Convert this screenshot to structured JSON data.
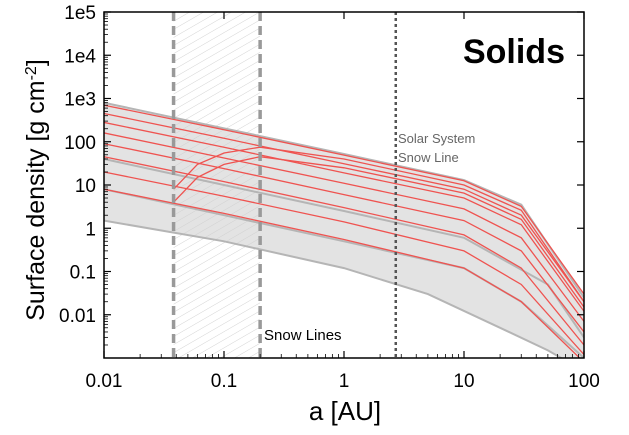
{
  "chart_data": {
    "type": "line",
    "title": "Solids",
    "xlabel": "a [AU]",
    "ylabel_main": "Surface density [g cm",
    "ylabel_sup": "-2",
    "ylabel_close": "]",
    "x_scale": "log",
    "y_scale": "log",
    "xlim": [
      0.01,
      100
    ],
    "ylim": [
      0.001,
      100000
    ],
    "x_ticks": [
      {
        "value": 0.01,
        "label": "0.01"
      },
      {
        "value": 0.1,
        "label": "0.1"
      },
      {
        "value": 1,
        "label": "1"
      },
      {
        "value": 10,
        "label": "10"
      },
      {
        "value": 100,
        "label": "100"
      }
    ],
    "y_ticks": [
      {
        "value": 0.01,
        "label": "0.01"
      },
      {
        "value": 0.1,
        "label": "0.1"
      },
      {
        "value": 1,
        "label": "1"
      },
      {
        "value": 10,
        "label": "10"
      },
      {
        "value": 100,
        "label": "100"
      },
      {
        "value": 1000,
        "label": "1e3"
      },
      {
        "value": 10000,
        "label": "1e4"
      },
      {
        "value": 100000,
        "label": "1e5"
      }
    ],
    "snow_line_band": {
      "x_min": 0.038,
      "x_max": 0.2
    },
    "solar_system_snow_line": 2.7,
    "annotations": {
      "snow_lines": "Snow Lines",
      "solar_line1": "Solar System",
      "solar_line2": "Snow Line"
    },
    "envelope": {
      "upper": [
        [
          0.01,
          800
        ],
        [
          0.1,
          205
        ],
        [
          1,
          52
        ],
        [
          10,
          13
        ],
        [
          30,
          3.5
        ],
        [
          100,
          0.025
        ]
      ],
      "lower": [
        [
          0.01,
          1.5
        ],
        [
          0.1,
          0.5
        ],
        [
          1,
          0.12
        ],
        [
          5,
          0.03
        ],
        [
          20,
          0.005
        ],
        [
          50,
          0.0015
        ],
        [
          100,
          0.0005
        ]
      ]
    },
    "series": [
      {
        "group": "gray",
        "values": [
          [
            0.01,
            800
          ],
          [
            0.1,
            205
          ],
          [
            1,
            52
          ],
          [
            10,
            13
          ],
          [
            30,
            3.5
          ],
          [
            100,
            0.025
          ]
        ]
      },
      {
        "group": "gray",
        "values": [
          [
            0.01,
            40
          ],
          [
            0.1,
            10
          ],
          [
            1,
            2.5
          ],
          [
            10,
            0.6
          ],
          [
            50,
            0.05
          ],
          [
            100,
            0.003
          ]
        ]
      },
      {
        "group": "gray",
        "values": [
          [
            0.01,
            8
          ],
          [
            0.1,
            2
          ],
          [
            1,
            0.5
          ],
          [
            10,
            0.12
          ],
          [
            30,
            0.02
          ],
          [
            100,
            0.001
          ]
        ]
      },
      {
        "group": "gray",
        "values": [
          [
            0.01,
            1.5
          ],
          [
            0.1,
            0.5
          ],
          [
            1,
            0.12
          ],
          [
            5,
            0.03
          ],
          [
            20,
            0.005
          ],
          [
            50,
            0.0015
          ],
          [
            100,
            0.0005
          ]
        ]
      },
      {
        "group": "red",
        "values": [
          [
            0.01,
            700
          ],
          [
            0.1,
            190
          ],
          [
            1,
            49
          ],
          [
            10,
            12.5
          ],
          [
            30,
            3.2
          ],
          [
            100,
            0.03
          ]
        ]
      },
      {
        "group": "red",
        "values": [
          [
            0.01,
            450
          ],
          [
            0.1,
            120
          ],
          [
            1,
            31
          ],
          [
            10,
            8
          ],
          [
            30,
            2
          ],
          [
            100,
            0.02
          ]
        ]
      },
      {
        "group": "red",
        "values": [
          [
            0.01,
            280
          ],
          [
            0.1,
            75
          ],
          [
            1,
            19
          ],
          [
            10,
            5
          ],
          [
            30,
            1.2
          ],
          [
            100,
            0.012
          ]
        ]
      },
      {
        "group": "red",
        "values": [
          [
            0.01,
            160
          ],
          [
            0.1,
            42
          ],
          [
            1,
            11
          ],
          [
            10,
            2.8
          ],
          [
            30,
            0.6
          ],
          [
            100,
            0.007
          ]
        ]
      },
      {
        "group": "red",
        "values": [
          [
            0.01,
            90
          ],
          [
            0.1,
            24
          ],
          [
            1,
            6
          ],
          [
            10,
            1.5
          ],
          [
            30,
            0.3
          ],
          [
            100,
            0.004
          ]
        ]
      },
      {
        "group": "red",
        "values": [
          [
            0.01,
            45
          ],
          [
            0.1,
            12
          ],
          [
            1,
            3
          ],
          [
            10,
            0.7
          ],
          [
            30,
            0.12
          ],
          [
            100,
            0.002
          ]
        ]
      },
      {
        "group": "red",
        "values": [
          [
            0.01,
            20
          ],
          [
            0.1,
            5.5
          ],
          [
            1,
            1.4
          ],
          [
            10,
            0.3
          ],
          [
            30,
            0.05
          ],
          [
            100,
            0.0012
          ]
        ]
      },
      {
        "group": "red",
        "values": [
          [
            0.01,
            8
          ],
          [
            0.1,
            2.2
          ],
          [
            1,
            0.55
          ],
          [
            10,
            0.12
          ],
          [
            30,
            0.02
          ],
          [
            100,
            0.0008
          ]
        ]
      },
      {
        "group": "red",
        "values": [
          [
            0.038,
            8
          ],
          [
            0.06,
            30
          ],
          [
            0.1,
            55
          ],
          [
            0.2,
            75
          ],
          [
            1,
            40
          ],
          [
            10,
            10
          ],
          [
            30,
            2.6
          ],
          [
            100,
            0.02
          ]
        ]
      },
      {
        "group": "red",
        "values": [
          [
            0.038,
            4
          ],
          [
            0.06,
            15
          ],
          [
            0.1,
            30
          ],
          [
            0.2,
            45
          ],
          [
            1,
            25
          ],
          [
            10,
            6.5
          ],
          [
            30,
            1.6
          ],
          [
            100,
            0.015
          ]
        ]
      }
    ]
  }
}
